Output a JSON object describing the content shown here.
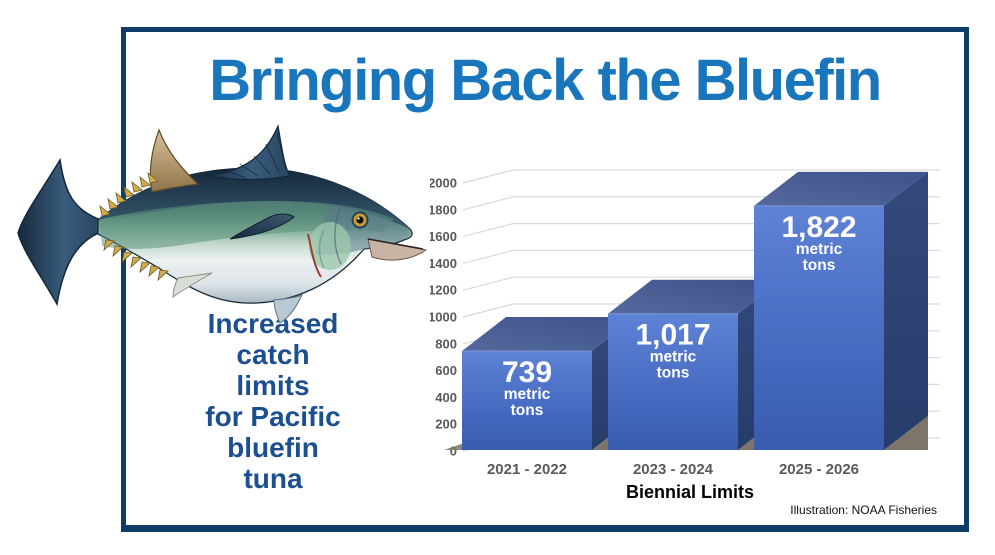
{
  "frame": {
    "border_color": "#0e3d68"
  },
  "title": {
    "text": "Bringing Back the Bluefin",
    "color": "#1a76bc"
  },
  "caption": {
    "text": "Increased\ncatch\nlimits\nfor Pacific\nbluefin\ntuna",
    "color": "#1c4f90"
  },
  "illustration": {
    "name": "pacific-bluefin-tuna",
    "credit": "Illustration: NOAA Fisheries"
  },
  "chart_data": {
    "type": "bar",
    "style": "3d-column",
    "title": "",
    "categories": [
      "2021 - 2022",
      "2023 - 2024",
      "2025 - 2026"
    ],
    "values": [
      739,
      1017,
      1822
    ],
    "bar_labels": [
      {
        "value": "739",
        "unit_lines": [
          "metric",
          "tons"
        ]
      },
      {
        "value": "1,017",
        "unit_lines": [
          "metric",
          "tons"
        ]
      },
      {
        "value": "1,822",
        "unit_lines": [
          "metric",
          "tons"
        ]
      }
    ],
    "xlabel": "Biennial Limits",
    "ylabel": "",
    "ylim": [
      0,
      2000
    ],
    "ytick_step": 200,
    "yticks": [
      0,
      200,
      400,
      600,
      800,
      1000,
      1200,
      1400,
      1600,
      1800,
      2000
    ],
    "grid": true,
    "legend": null,
    "colors": {
      "bar_front_top": "#5e82d6",
      "bar_front_bottom": "#3a5cae",
      "bar_top_light": "#55699f",
      "bar_top_dark": "#3d5288",
      "bar_side_light": "#33497c",
      "bar_side_dark": "#263c6b",
      "shadow_wedge": "#7d7668",
      "gridline": "#d9d9d9",
      "tick_label": "#595959",
      "bar_label_text": "#ffffff"
    }
  }
}
